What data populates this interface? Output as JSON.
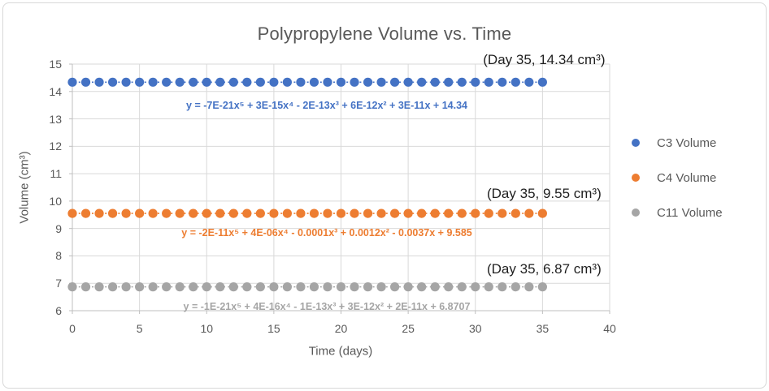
{
  "chart": {
    "title": "Polypropylene Volume vs. Time",
    "x_axis": {
      "title": "Time (days)",
      "tick_labels": [
        "0",
        "5",
        "10",
        "15",
        "20",
        "25",
        "30",
        "35",
        "40"
      ]
    },
    "y_axis": {
      "title": "Volume (cm³)",
      "tick_labels": [
        "6",
        "7",
        "8",
        "9",
        "10",
        "11",
        "12",
        "13",
        "14",
        "15"
      ]
    },
    "legend": [
      {
        "label": "C3 Volume",
        "color": "#4472C4"
      },
      {
        "label": "C4 Volume",
        "color": "#ED7D31"
      },
      {
        "label": "C11 Volume",
        "color": "#A5A5A5"
      }
    ],
    "colors": {
      "gridline": "#d9d9d9",
      "axis_line": "#bfbfbf",
      "text_gray": "#595959",
      "annotation_text": "#1f1f1f"
    }
  },
  "chart_data": {
    "type": "scatter",
    "title": "Polypropylene Volume vs. Time",
    "xlabel": "Time (days)",
    "ylabel": "Volume (cm³)",
    "xlim": [
      0,
      40
    ],
    "ylim": [
      6,
      15
    ],
    "x_tick_step": 5,
    "y_tick_step": 1,
    "grid": true,
    "legend_position": "right",
    "x": [
      0,
      1,
      2,
      3,
      4,
      5,
      6,
      7,
      8,
      9,
      10,
      11,
      12,
      13,
      14,
      15,
      16,
      17,
      18,
      19,
      20,
      21,
      22,
      23,
      24,
      25,
      26,
      27,
      28,
      29,
      30,
      31,
      32,
      33,
      34,
      35
    ],
    "series": [
      {
        "name": "C3 Volume",
        "color": "#4472C4",
        "y": [
          14.34,
          14.34,
          14.34,
          14.34,
          14.34,
          14.34,
          14.34,
          14.34,
          14.34,
          14.34,
          14.34,
          14.34,
          14.34,
          14.34,
          14.34,
          14.34,
          14.34,
          14.34,
          14.34,
          14.34,
          14.34,
          14.34,
          14.34,
          14.34,
          14.34,
          14.34,
          14.34,
          14.34,
          14.34,
          14.34,
          14.34,
          14.34,
          14.34,
          14.34,
          14.34,
          14.34
        ],
        "annotation": "(Day 35, 14.34 cm³)",
        "trendline": {
          "type": "polynomial",
          "order": 5,
          "style": "dotted",
          "equation": "y = -7E-21x⁵ + 3E-15x⁴ - 2E-13x³ + 6E-12x² + 3E-11x + 14.34"
        }
      },
      {
        "name": "C4 Volume",
        "color": "#ED7D31",
        "y": [
          9.55,
          9.55,
          9.55,
          9.55,
          9.55,
          9.55,
          9.55,
          9.55,
          9.55,
          9.55,
          9.55,
          9.55,
          9.55,
          9.55,
          9.55,
          9.55,
          9.55,
          9.55,
          9.55,
          9.55,
          9.55,
          9.55,
          9.55,
          9.55,
          9.55,
          9.55,
          9.55,
          9.55,
          9.55,
          9.55,
          9.55,
          9.55,
          9.55,
          9.55,
          9.55,
          9.55
        ],
        "annotation": "(Day 35, 9.55 cm³)",
        "trendline": {
          "type": "polynomial",
          "order": 5,
          "style": "dotted",
          "equation": "y = -2E-11x⁵ + 4E-06x⁴ - 0.0001x³ + 0.0012x² - 0.0037x + 9.585"
        }
      },
      {
        "name": "C11 Volume",
        "color": "#A5A5A5",
        "y": [
          6.87,
          6.87,
          6.87,
          6.87,
          6.87,
          6.87,
          6.87,
          6.87,
          6.87,
          6.87,
          6.87,
          6.87,
          6.87,
          6.87,
          6.87,
          6.87,
          6.87,
          6.87,
          6.87,
          6.87,
          6.87,
          6.87,
          6.87,
          6.87,
          6.87,
          6.87,
          6.87,
          6.87,
          6.87,
          6.87,
          6.87,
          6.87,
          6.87,
          6.87,
          6.87,
          6.87
        ],
        "annotation": "(Day 35, 6.87 cm³)",
        "trendline": {
          "type": "polynomial",
          "order": 5,
          "style": "dotted",
          "equation": "y = -1E-21x⁵ + 4E-16x⁴ - 1E-13x³ + 3E-12x² + 2E-11x + 6.8707"
        }
      }
    ]
  }
}
